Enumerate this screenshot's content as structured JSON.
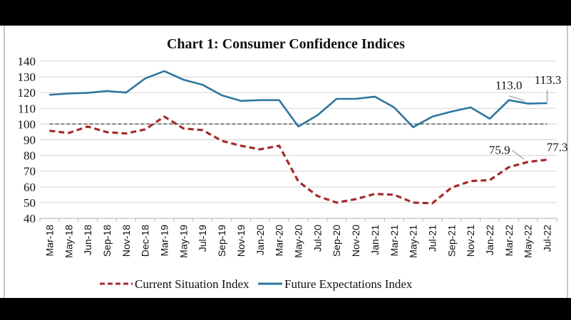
{
  "chart_data": {
    "type": "line",
    "title": "Chart 1: Consumer Confidence Indices",
    "xlabel": "",
    "ylabel": "",
    "ylim": [
      40,
      140
    ],
    "yticks": [
      40,
      50,
      60,
      70,
      80,
      90,
      100,
      110,
      120,
      130,
      140
    ],
    "grid": true,
    "reference_line": {
      "value": 100,
      "style": "dashed",
      "color": "#555555"
    },
    "categories": [
      "Mar-18",
      "May-18",
      "Jun-18",
      "Sep-18",
      "Nov-18",
      "Dec-18",
      "Mar-19",
      "May-19",
      "Jul-19",
      "Sep-19",
      "Nov-19",
      "Jan-20",
      "Mar-20",
      "May-20",
      "Jul-20",
      "Sep-20",
      "Nov-20",
      "Jan-21",
      "Mar-21",
      "May-21",
      "Jul-21",
      "Sep-21",
      "Nov-21",
      "Jan-22",
      "Mar-22",
      "May-22",
      "Jul-22"
    ],
    "series": [
      {
        "name": "Current Situation Index",
        "style": "dashed",
        "color": "#a52a2a",
        "values": [
          95.7,
          94.3,
          98.4,
          94.8,
          94.0,
          96.6,
          104.7,
          97.2,
          96.1,
          89.3,
          86.2,
          83.9,
          86.2,
          63.5,
          54.2,
          50.0,
          52.2,
          55.5,
          55.0,
          50.0,
          49.6,
          59.5,
          63.7,
          64.3,
          72.6,
          75.9,
          77.3
        ]
      },
      {
        "name": "Future Expectations Index",
        "style": "solid",
        "color": "#2e75a0",
        "values": [
          118.6,
          119.4,
          119.8,
          121.0,
          120.0,
          129.0,
          133.7,
          128.2,
          125.0,
          118.3,
          114.7,
          115.2,
          115.2,
          98.4,
          105.6,
          116.0,
          116.0,
          117.4,
          110.6,
          98.0,
          104.7,
          107.9,
          110.6,
          103.4,
          115.2,
          113.0,
          113.3
        ]
      }
    ],
    "annotations": [
      {
        "series": "Future Expectations Index",
        "category": "May-22",
        "text": "113.0"
      },
      {
        "series": "Future Expectations Index",
        "category": "Jul-22",
        "text": "113.3"
      },
      {
        "series": "Current Situation Index",
        "category": "May-22",
        "text": "75.9"
      },
      {
        "series": "Current Situation Index",
        "category": "Jul-22",
        "text": "77.3"
      }
    ],
    "legend": {
      "position": "bottom",
      "entries": [
        "Current Situation Index",
        "Future Expectations Index"
      ]
    }
  }
}
